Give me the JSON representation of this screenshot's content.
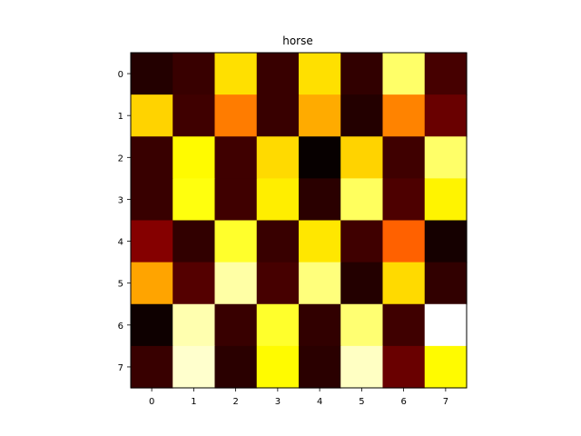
{
  "chart_data": {
    "type": "heatmap",
    "title": "horse",
    "xlabel": "",
    "ylabel": "",
    "colormap": "hot",
    "x_ticks": [
      "0",
      "1",
      "2",
      "3",
      "4",
      "5",
      "6",
      "7"
    ],
    "y_ticks": [
      "0",
      "1",
      "2",
      "3",
      "4",
      "5",
      "6",
      "7"
    ],
    "vmin": 0,
    "vmax": 1,
    "values": [
      [
        0.05,
        0.08,
        0.7,
        0.08,
        0.7,
        0.07,
        0.85,
        0.1
      ],
      [
        0.68,
        0.09,
        0.55,
        0.08,
        0.62,
        0.05,
        0.56,
        0.15
      ],
      [
        0.08,
        0.74,
        0.09,
        0.69,
        0.01,
        0.68,
        0.09,
        0.85
      ],
      [
        0.08,
        0.76,
        0.09,
        0.72,
        0.06,
        0.84,
        0.11,
        0.73
      ],
      [
        0.19,
        0.07,
        0.79,
        0.08,
        0.71,
        0.09,
        0.51,
        0.03
      ],
      [
        0.61,
        0.12,
        0.91,
        0.1,
        0.87,
        0.05,
        0.69,
        0.07
      ],
      [
        0.02,
        0.92,
        0.08,
        0.79,
        0.07,
        0.86,
        0.09,
        1.0
      ],
      [
        0.08,
        0.95,
        0.06,
        0.74,
        0.06,
        0.94,
        0.15,
        0.74
      ]
    ]
  }
}
